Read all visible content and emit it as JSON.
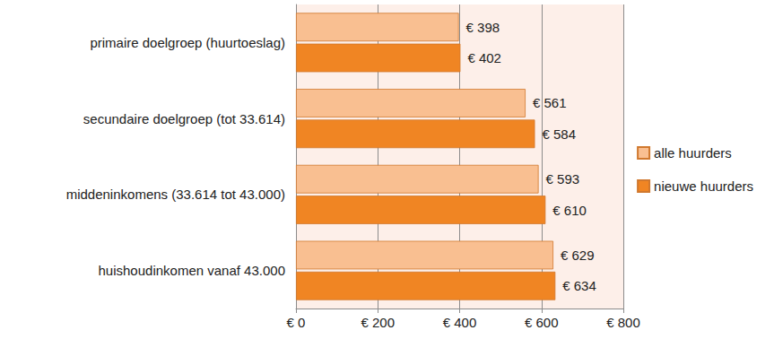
{
  "chart_data": {
    "type": "bar",
    "orientation": "horizontal",
    "categories": [
      "primaire doelgroep (huurtoeslag)",
      "secundaire doelgroep (tot 33.614)",
      "middeninkomens (33.614 tot 43.000)",
      "huishoudinkomen vanaf 43.000"
    ],
    "series": [
      {
        "name": "alle huurders",
        "color": "#f9bf91",
        "values": [
          398,
          561,
          593,
          629
        ],
        "value_labels": [
          "€ 398",
          "€ 561",
          "€ 593",
          "€ 629"
        ]
      },
      {
        "name": "nieuwe huurders",
        "color": "#f08523",
        "values": [
          402,
          584,
          610,
          634
        ],
        "value_labels": [
          "€ 402",
          "€ 584",
          "€ 610",
          "€ 634"
        ]
      }
    ],
    "xlim": [
      0,
      800
    ],
    "xticks": [
      {
        "value": 0,
        "label": "€ 0"
      },
      {
        "value": 200,
        "label": "€ 200"
      },
      {
        "value": 400,
        "label": "€ 400"
      },
      {
        "value": 600,
        "label": "€ 600"
      },
      {
        "value": 800,
        "label": "€ 800"
      }
    ],
    "grid": true,
    "legend": "right",
    "data_labels": true
  }
}
